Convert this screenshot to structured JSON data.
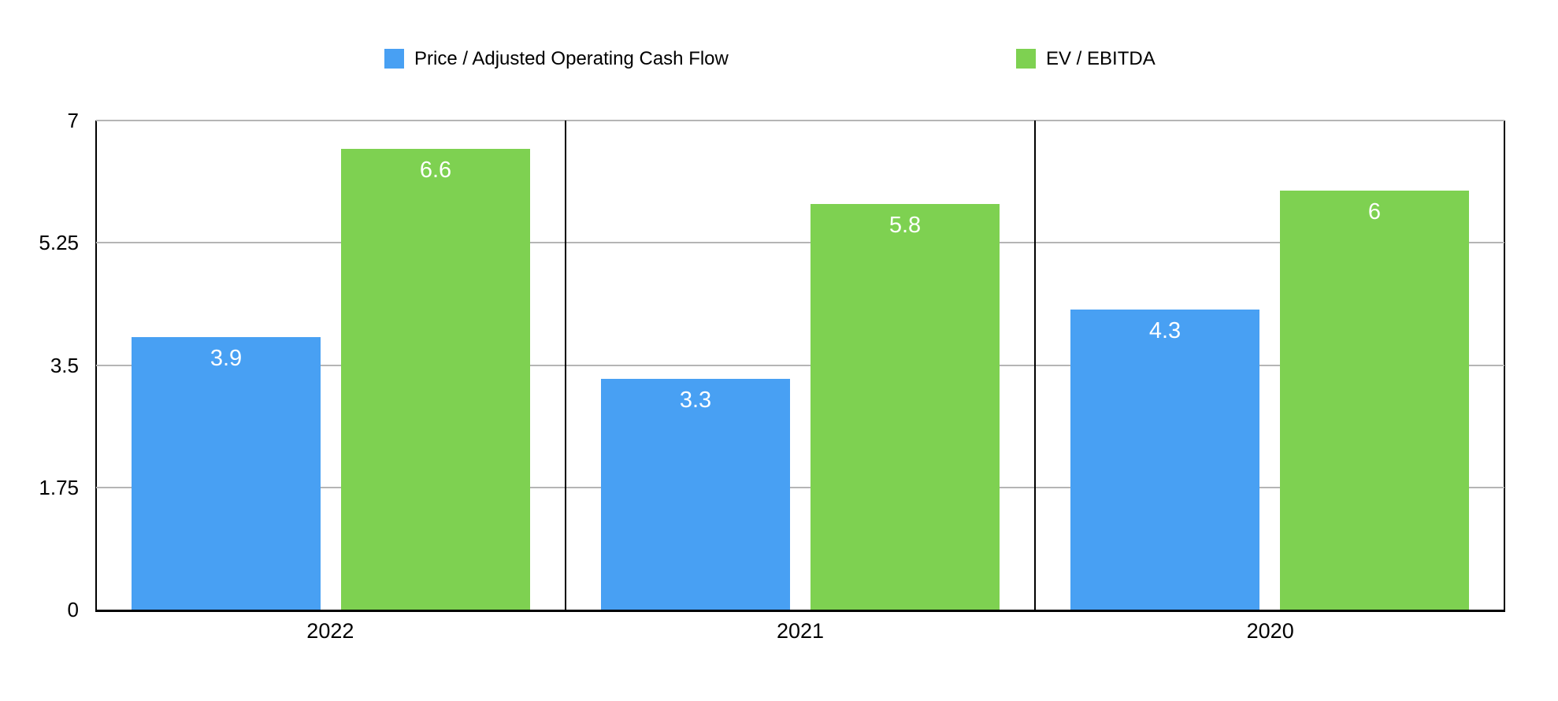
{
  "legend": {
    "items": [
      {
        "label": "Price / Adjusted Operating Cash Flow",
        "color": "#48a0f3"
      },
      {
        "label": "EV / EBITDA",
        "color": "#7ed151"
      }
    ]
  },
  "chart_data": {
    "type": "bar",
    "title": "",
    "xlabel": "",
    "ylabel": "",
    "categories": [
      "2022",
      "2021",
      "2020"
    ],
    "series": [
      {
        "name": "Price / Adjusted Operating Cash Flow",
        "color": "#48a0f3",
        "values": [
          3.9,
          3.3,
          4.3
        ],
        "value_labels": [
          "3.9",
          "3.3",
          "4.3"
        ]
      },
      {
        "name": "EV / EBITDA",
        "color": "#7ed151",
        "values": [
          6.6,
          5.8,
          6
        ],
        "value_labels": [
          "6.6",
          "5.8",
          "6"
        ]
      }
    ],
    "ylim": [
      0,
      7
    ],
    "yticks": [
      0,
      1.75,
      3.5,
      5.25,
      7
    ],
    "ytick_labels": [
      "0",
      "1.75",
      "3.5",
      "5.25",
      "7"
    ],
    "grid": "horizontal",
    "legend_position": "top",
    "value_label_style": "inside-top",
    "styles": {
      "background": "#ffffff",
      "grid_color": "#b5b5b5",
      "axis_color": "#000000",
      "text_color": "#000000",
      "bar_label_color": "#ffffff"
    }
  }
}
